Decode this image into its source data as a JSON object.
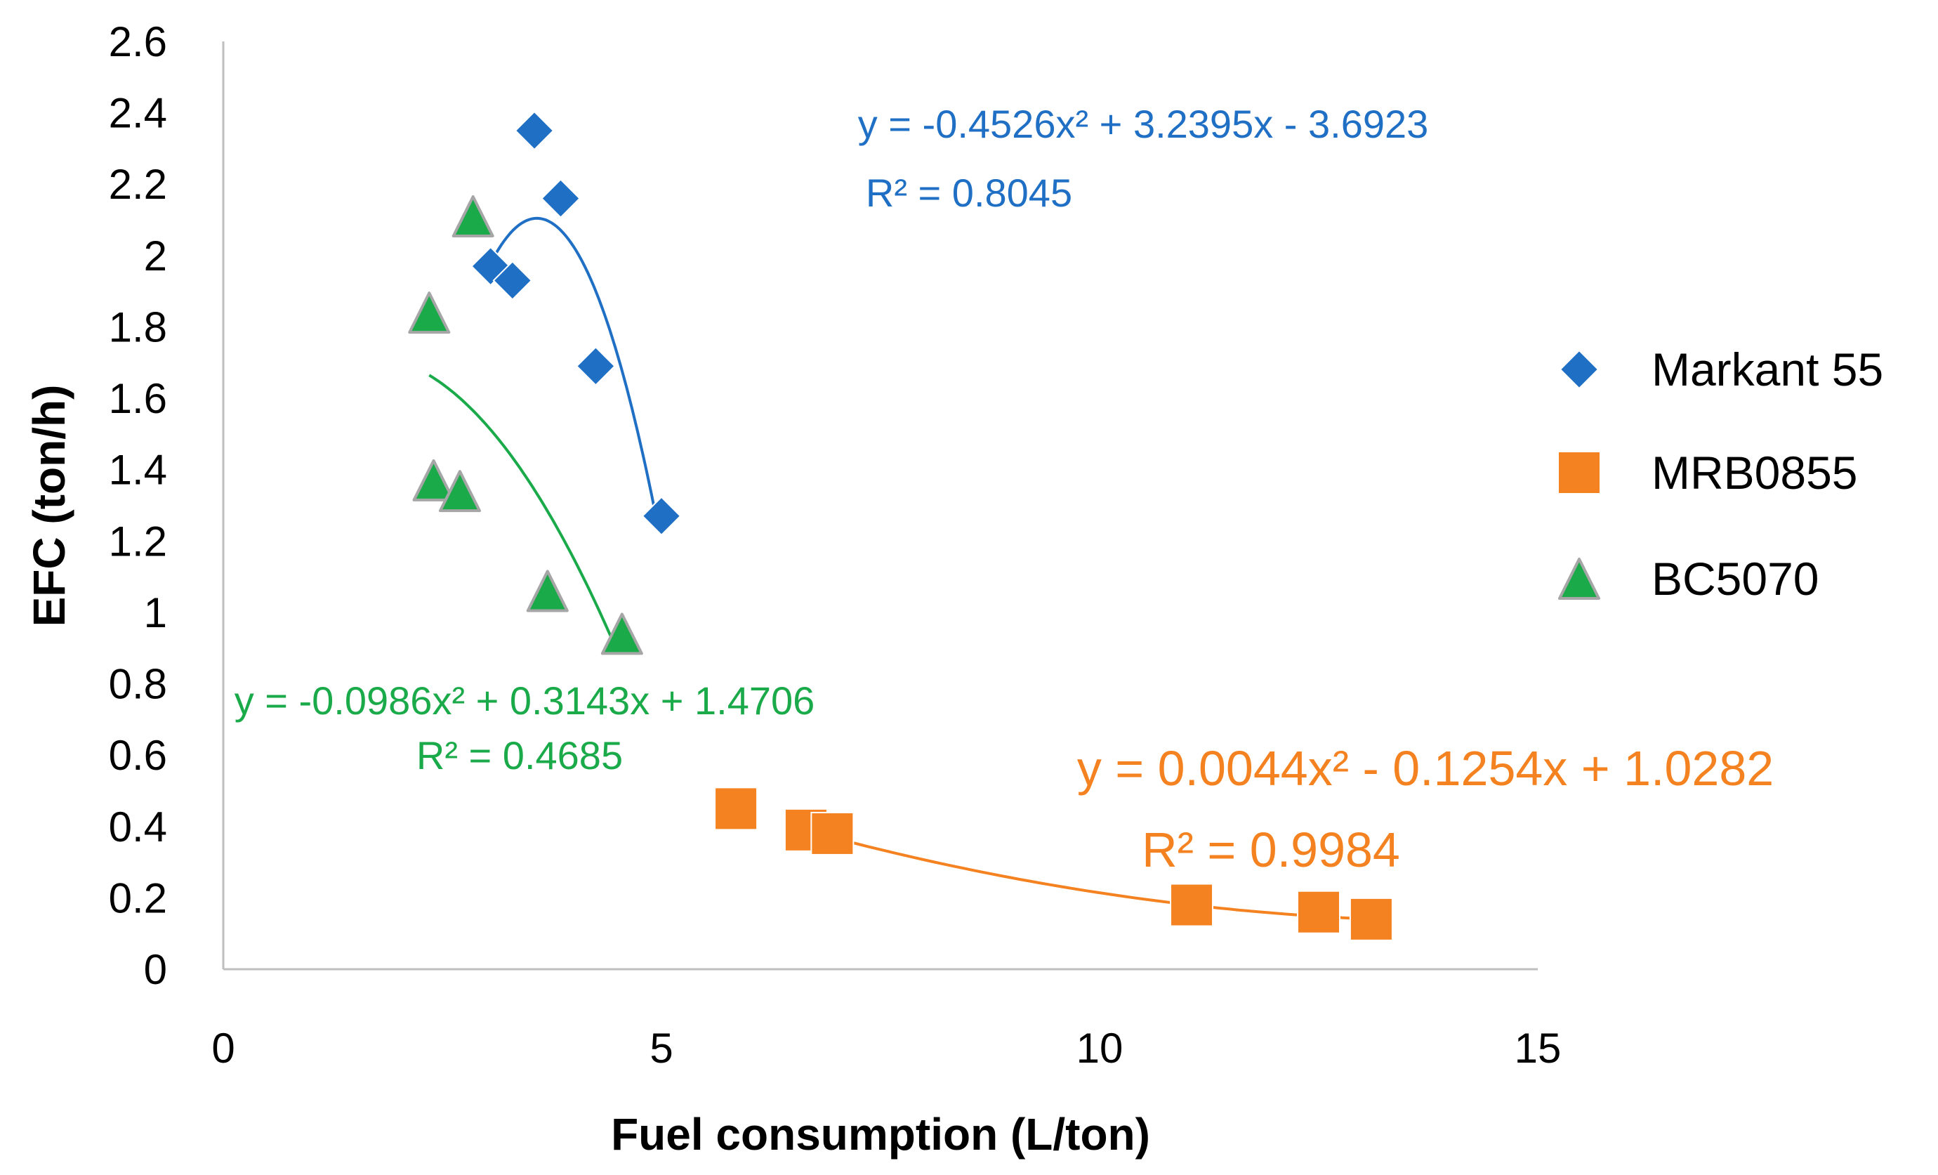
{
  "chart_data": {
    "type": "scatter",
    "xlabel": "Fuel consumption (L/ton)",
    "ylabel": "EFC (ton/h)",
    "xlim": [
      0,
      15
    ],
    "ylim": [
      0,
      2.6
    ],
    "xticks": [
      "0",
      "5",
      "10",
      "15"
    ],
    "yticks": [
      "0",
      "0.2",
      "0.4",
      "0.6",
      "0.8",
      "1",
      "1.2",
      "1.4",
      "1.6",
      "1.8",
      "2",
      "2.2",
      "2.4",
      "2.6"
    ],
    "grid": false,
    "legend_position": "right",
    "series": [
      {
        "name": "Markant 55",
        "marker": "diamond",
        "color": "#1f6fc5",
        "x": [
          3.55,
          3.85,
          3.05,
          3.3,
          4.25,
          5.0
        ],
        "y": [
          2.35,
          2.16,
          1.97,
          1.93,
          1.69,
          1.27
        ],
        "trend": {
          "coefficients": [
            -0.4526,
            3.2395,
            -3.6923
          ],
          "x_range": [
            3.05,
            4.95
          ],
          "equation": "y = -0.4526x² + 3.2395x - 3.6923",
          "r2": "R² = 0.8045"
        }
      },
      {
        "name": "MRB0855",
        "marker": "square",
        "color": "#f58220",
        "x": [
          5.85,
          6.65,
          6.95,
          11.05,
          12.5,
          13.1
        ],
        "y": [
          0.45,
          0.39,
          0.38,
          0.18,
          0.16,
          0.14
        ],
        "trend": {
          "coefficients": [
            0.0044,
            -0.1254,
            1.0282
          ],
          "x_range": [
            6.6,
            13.1
          ],
          "equation": "y = 0.0044x² - 0.1254x + 1.0282",
          "r2": "R² = 0.9984"
        }
      },
      {
        "name": "BC5070",
        "marker": "triangle",
        "color": "#1aaa4a",
        "x": [
          2.85,
          2.35,
          2.4,
          2.7,
          3.7,
          4.55
        ],
        "y": [
          2.11,
          1.84,
          1.37,
          1.34,
          1.06,
          0.94
        ],
        "trend": {
          "coefficients": [
            -0.0986,
            0.3143,
            1.4706
          ],
          "x_range": [
            2.35,
            4.5
          ],
          "equation": "y = -0.0986x² + 0.3143x + 1.4706",
          "r2": "R² = 0.4685"
        }
      }
    ]
  }
}
